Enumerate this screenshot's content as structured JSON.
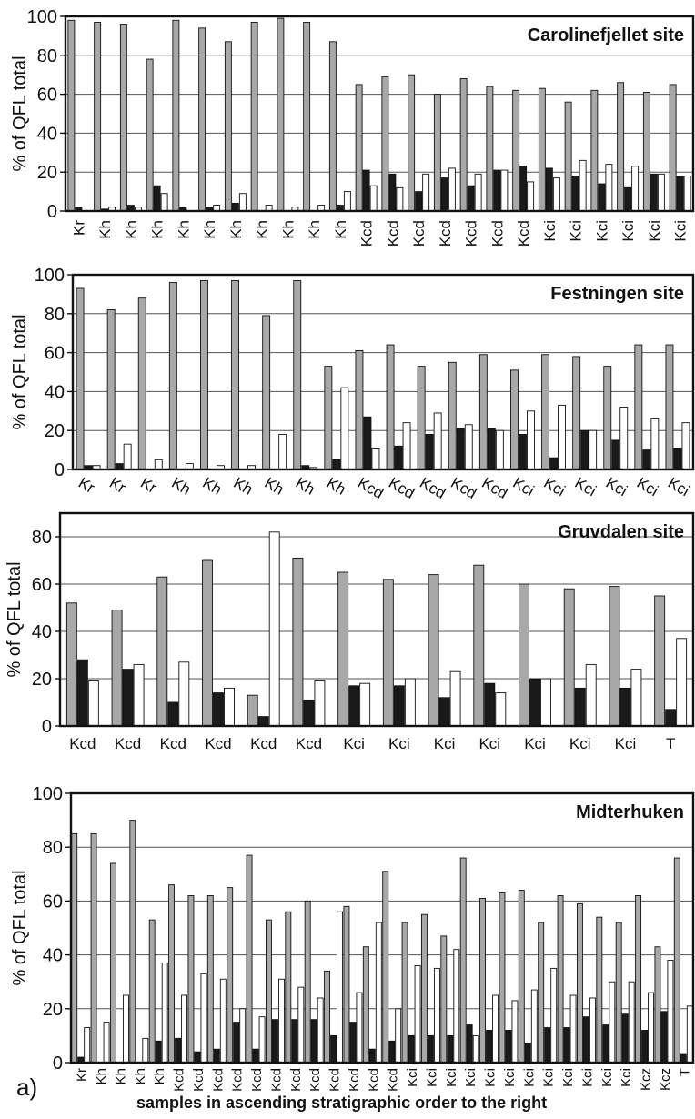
{
  "figure": {
    "panel_label": "a)",
    "footer_caption": "samples in ascending stratigraphic order to the right"
  },
  "chart_data": [
    {
      "type": "bar",
      "title": "Carolinefjellet site",
      "ylabel": "% of QFL total",
      "xlabel": "",
      "ylim": [
        0,
        100
      ],
      "yticks": [
        0,
        20,
        40,
        60,
        80,
        100
      ],
      "grid": true,
      "tick_rotation": 90,
      "categories": [
        "Kr",
        "Kh",
        "Kh",
        "Kh",
        "Kh",
        "Kh",
        "Kh",
        "Kh",
        "Kh",
        "Kh",
        "Kh",
        "Kcd",
        "Kcd",
        "Kcd",
        "Kcd",
        "Kcd",
        "Kcd",
        "Kcd",
        "Kci",
        "Kci",
        "Kci",
        "Kci",
        "Kci",
        "Kci"
      ],
      "series": [
        {
          "color": "#a8a8a8",
          "values": [
            98,
            97,
            96,
            78,
            98,
            94,
            87,
            97,
            99,
            97,
            87,
            65,
            69,
            70,
            60,
            68,
            64,
            62,
            63,
            56,
            62,
            66,
            61,
            65
          ]
        },
        {
          "color": "#1a1a1a",
          "values": [
            2,
            1,
            3,
            13,
            2,
            2,
            4,
            0,
            0,
            0,
            3,
            21,
            19,
            10,
            17,
            13,
            21,
            23,
            22,
            18,
            14,
            12,
            19,
            18
          ]
        },
        {
          "color": "#ffffff",
          "values": [
            0,
            2,
            2,
            9,
            0,
            3,
            9,
            3,
            2,
            3,
            10,
            13,
            12,
            19,
            22,
            19,
            21,
            15,
            17,
            26,
            24,
            23,
            19,
            18
          ]
        }
      ]
    },
    {
      "type": "bar",
      "title": "Festningen site",
      "ylabel": "% of QFL total",
      "xlabel": "",
      "ylim": [
        0,
        100
      ],
      "yticks": [
        0,
        20,
        40,
        60,
        80,
        100
      ],
      "grid": true,
      "tick_rotation": -30,
      "categories": [
        "Kr",
        "Kr",
        "Kr",
        "Kh",
        "Kh",
        "Kh",
        "Kh",
        "Kh",
        "Kh",
        "Kcd",
        "Kcd",
        "Kcd",
        "Kcd",
        "Kcd",
        "Kci",
        "Kci",
        "Kci",
        "Kci",
        "Kci",
        "Kci"
      ],
      "series": [
        {
          "color": "#a8a8a8",
          "values": [
            93,
            82,
            88,
            96,
            97,
            97,
            79,
            97,
            53,
            61,
            64,
            53,
            55,
            59,
            51,
            59,
            58,
            53,
            64,
            64
          ]
        },
        {
          "color": "#1a1a1a",
          "values": [
            2,
            3,
            0,
            0,
            0,
            0,
            0,
            2,
            5,
            27,
            12,
            18,
            21,
            21,
            18,
            6,
            20,
            15,
            10,
            11
          ]
        },
        {
          "color": "#ffffff",
          "values": [
            2,
            13,
            5,
            3,
            2,
            2,
            18,
            1,
            42,
            11,
            24,
            29,
            23,
            20,
            30,
            33,
            20,
            32,
            26,
            24
          ]
        }
      ]
    },
    {
      "type": "bar",
      "title": "Gruvdalen site",
      "ylabel": "% of QFL total",
      "xlabel": "",
      "ylim": [
        0,
        90
      ],
      "yticks": [
        0,
        20,
        40,
        60,
        80
      ],
      "grid": true,
      "tick_rotation": 0,
      "categories": [
        "Kcd",
        "Kcd",
        "Kcd",
        "Kcd",
        "Kcd",
        "Kcd",
        "Kci",
        "Kci",
        "Kci",
        "Kci",
        "Kci",
        "Kci",
        "Kci",
        "T"
      ],
      "series": [
        {
          "color": "#a8a8a8",
          "values": [
            52,
            49,
            63,
            70,
            13,
            71,
            65,
            62,
            64,
            68,
            60,
            58,
            59,
            55
          ]
        },
        {
          "color": "#1a1a1a",
          "values": [
            28,
            24,
            10,
            14,
            4,
            11,
            17,
            17,
            12,
            18,
            20,
            16,
            16,
            7
          ]
        },
        {
          "color": "#ffffff",
          "values": [
            19,
            26,
            27,
            16,
            82,
            19,
            18,
            20,
            23,
            14,
            20,
            26,
            24,
            37
          ]
        }
      ]
    },
    {
      "type": "bar",
      "title": "Midterhuken",
      "ylabel": "% of QFL total",
      "xlabel": "samples in ascending stratigraphic order to the right",
      "ylim": [
        0,
        100
      ],
      "yticks": [
        0,
        20,
        40,
        60,
        80,
        100
      ],
      "grid": true,
      "tick_rotation": 90,
      "categories": [
        "Kr",
        "Kh",
        "Kh",
        "Kh",
        "Kh",
        "Kcd",
        "Kcd",
        "Kcd",
        "Kcd",
        "Kcd",
        "Kcd",
        "Kcd",
        "Kcd",
        "Kcd",
        "Kcd",
        "Kcd",
        "Kcd",
        "Kci",
        "Kci",
        "Kci",
        "Kci",
        "Kci",
        "Kci",
        "Kci",
        "Kci",
        "Kci",
        "Kci",
        "Kci",
        "Kci",
        "Kcz",
        "Kcz",
        "T"
      ],
      "series": [
        {
          "color": "#a8a8a8",
          "values": [
            85,
            85,
            74,
            90,
            53,
            66,
            62,
            62,
            65,
            77,
            53,
            56,
            60,
            34,
            58,
            43,
            71,
            52,
            55,
            47,
            76,
            61,
            63,
            64,
            52,
            62,
            59,
            54,
            52,
            62,
            43,
            76
          ]
        },
        {
          "color": "#1a1a1a",
          "values": [
            2,
            0,
            0,
            0,
            8,
            9,
            4,
            5,
            15,
            5,
            16,
            16,
            16,
            10,
            15,
            5,
            8,
            10,
            10,
            10,
            14,
            12,
            12,
            7,
            13,
            13,
            17,
            14,
            18,
            12,
            19,
            3
          ]
        },
        {
          "color": "#ffffff",
          "values": [
            13,
            15,
            25,
            9,
            37,
            25,
            33,
            31,
            20,
            17,
            31,
            28,
            24,
            56,
            26,
            52,
            20,
            36,
            35,
            42,
            10,
            25,
            23,
            27,
            35,
            25,
            24,
            30,
            30,
            26,
            38,
            21
          ]
        }
      ]
    }
  ]
}
